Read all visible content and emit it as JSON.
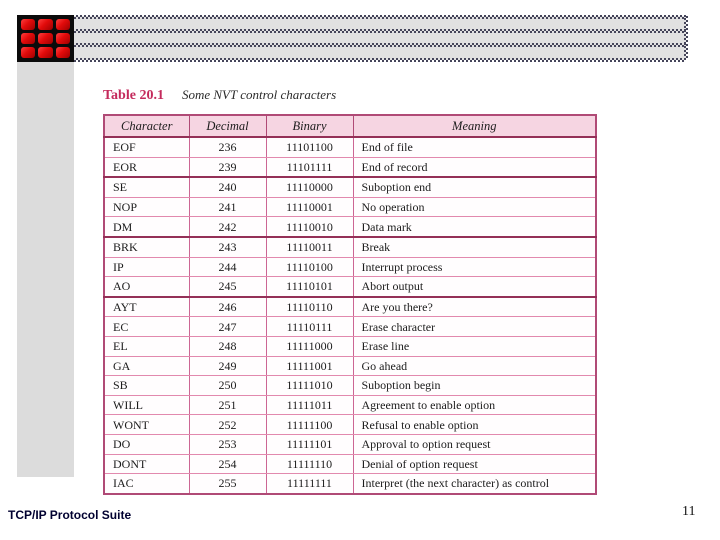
{
  "caption": {
    "label": "Table 20.1",
    "subtitle": "Some NVT control characters"
  },
  "table": {
    "headers": [
      "Character",
      "Decimal",
      "Binary",
      "Meaning"
    ],
    "rows": [
      {
        "character": "EOF",
        "decimal": "236",
        "binary": "11101100",
        "meaning": "End of file",
        "group_end": false
      },
      {
        "character": "EOR",
        "decimal": "239",
        "binary": "11101111",
        "meaning": "End of record",
        "group_end": true
      },
      {
        "character": "SE",
        "decimal": "240",
        "binary": "11110000",
        "meaning": "Suboption end",
        "group_end": false
      },
      {
        "character": "NOP",
        "decimal": "241",
        "binary": "11110001",
        "meaning": "No operation",
        "group_end": false
      },
      {
        "character": "DM",
        "decimal": "242",
        "binary": "11110010",
        "meaning": "Data mark",
        "group_end": true
      },
      {
        "character": "BRK",
        "decimal": "243",
        "binary": "11110011",
        "meaning": "Break",
        "group_end": false
      },
      {
        "character": "IP",
        "decimal": "244",
        "binary": "11110100",
        "meaning": "Interrupt process",
        "group_end": false
      },
      {
        "character": "AO",
        "decimal": "245",
        "binary": "11110101",
        "meaning": "Abort output",
        "group_end": true
      },
      {
        "character": "AYT",
        "decimal": "246",
        "binary": "11110110",
        "meaning": "Are you there?",
        "group_end": false
      },
      {
        "character": "EC",
        "decimal": "247",
        "binary": "11110111",
        "meaning": "Erase character",
        "group_end": false
      },
      {
        "character": "EL",
        "decimal": "248",
        "binary": "11111000",
        "meaning": "Erase line",
        "group_end": false
      },
      {
        "character": "GA",
        "decimal": "249",
        "binary": "11111001",
        "meaning": "Go ahead",
        "group_end": false
      },
      {
        "character": "SB",
        "decimal": "250",
        "binary": "11111010",
        "meaning": "Suboption begin",
        "group_end": false
      },
      {
        "character": "WILL",
        "decimal": "251",
        "binary": "11111011",
        "meaning": "Agreement to enable option",
        "group_end": false
      },
      {
        "character": "WONT",
        "decimal": "252",
        "binary": "11111100",
        "meaning": "Refusal to enable option",
        "group_end": false
      },
      {
        "character": "DO",
        "decimal": "253",
        "binary": "11111101",
        "meaning": "Approval to option request",
        "group_end": false
      },
      {
        "character": "DONT",
        "decimal": "254",
        "binary": "11111110",
        "meaning": "Denial of option request",
        "group_end": false
      },
      {
        "character": "IAC",
        "decimal": "255",
        "binary": "11111111",
        "meaning": "Interpret (the next character) as control",
        "group_end": false
      }
    ]
  },
  "footer": {
    "title": "TCP/IP Protocol Suite",
    "page_number": "11"
  },
  "logo": {
    "description": "red-grid-logo",
    "tile_count": 9
  },
  "colors": {
    "accent_crimson": "#c42a5c",
    "table_border_outer": "#b04a76",
    "table_border_group": "#943057",
    "table_border_thin": "#e289ae",
    "table_border_column": "#cc6694",
    "header_bg": "#f6d5e2",
    "banner_gray": "#e1e1e1",
    "sidebar_gray": "#dcdcdc",
    "logo_red": "#e20b0b",
    "footer_text": "#000030"
  }
}
